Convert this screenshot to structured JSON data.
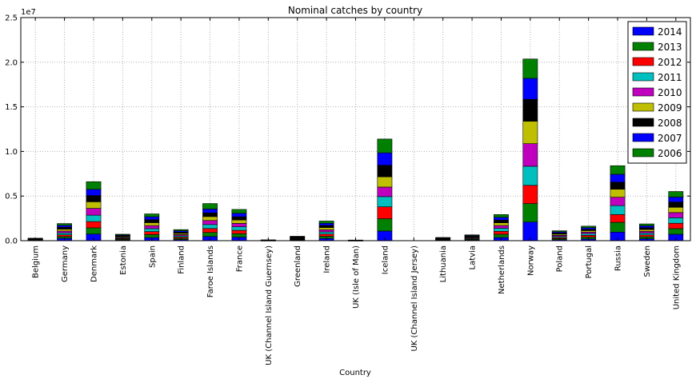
{
  "chart_data": {
    "type": "bar",
    "stacked": true,
    "title": "Nominal catches by country",
    "xlabel": "Country",
    "ylabel": "",
    "y_offset_text": "1e7",
    "ylim": [
      0,
      25000000
    ],
    "yticks": [
      0,
      5000000,
      10000000,
      15000000,
      20000000,
      25000000
    ],
    "ytick_labels": [
      "0.0",
      "0.5",
      "1.0",
      "1.5",
      "2.0",
      "2.5"
    ],
    "grid": true,
    "legend_position": "top-right",
    "categories": [
      "Belgium",
      "Germany",
      "Denmark",
      "Estonia",
      "Spain",
      "Finland",
      "Faroe Islands",
      "France",
      "UK (Channel Island Guernsey)",
      "Greenland",
      "Ireland",
      "UK (Isle of Man)",
      "Iceland",
      "UK (Channel Island Jersey)",
      "Lithuania",
      "Latvia",
      "Netherlands",
      "Norway",
      "Poland",
      "Portugal",
      "Russia",
      "Sweden",
      "United Kingdom"
    ],
    "series": [
      {
        "name": "2014",
        "color": "#0000ff",
        "values": [
          40000,
          260000,
          740000,
          80000,
          350000,
          130000,
          470000,
          400000,
          10000,
          55000,
          250000,
          8000,
          1080000,
          0,
          45000,
          75000,
          360000,
          2090000,
          110000,
          190000,
          960000,
          220000,
          720000
        ]
      },
      {
        "name": "2013",
        "color": "#008000",
        "values": [
          30000,
          200000,
          700000,
          80000,
          340000,
          130000,
          450000,
          380000,
          10000,
          55000,
          240000,
          8000,
          1380000,
          0,
          40000,
          75000,
          360000,
          2070000,
          120000,
          210000,
          1100000,
          220000,
          630000
        ]
      },
      {
        "name": "2012",
        "color": "#ff0000",
        "values": [
          30000,
          200000,
          700000,
          80000,
          330000,
          140000,
          440000,
          380000,
          10000,
          55000,
          250000,
          8000,
          1330000,
          0,
          35000,
          75000,
          330000,
          2040000,
          120000,
          200000,
          870000,
          210000,
          600000
        ]
      },
      {
        "name": "2011",
        "color": "#00bfbf",
        "values": [
          30000,
          210000,
          720000,
          80000,
          330000,
          140000,
          450000,
          390000,
          10000,
          55000,
          240000,
          8000,
          1150000,
          0,
          40000,
          75000,
          340000,
          2140000,
          120000,
          190000,
          1000000,
          200000,
          620000
        ]
      },
      {
        "name": "2010",
        "color": "#bf00bf",
        "values": [
          30000,
          210000,
          760000,
          80000,
          340000,
          140000,
          450000,
          390000,
          10000,
          55000,
          240000,
          8000,
          1070000,
          0,
          40000,
          75000,
          310000,
          2530000,
          130000,
          170000,
          940000,
          200000,
          580000
        ]
      },
      {
        "name": "2009",
        "color": "#bfbf00",
        "values": [
          30000,
          210000,
          740000,
          80000,
          330000,
          140000,
          440000,
          380000,
          10000,
          55000,
          240000,
          8000,
          1150000,
          0,
          40000,
          70000,
          300000,
          2520000,
          130000,
          170000,
          900000,
          200000,
          590000
        ]
      },
      {
        "name": "2008",
        "color": "#000000",
        "values": [
          30000,
          220000,
          700000,
          80000,
          340000,
          140000,
          410000,
          360000,
          10000,
          55000,
          250000,
          8000,
          1290000,
          0,
          40000,
          70000,
          310000,
          2450000,
          130000,
          160000,
          790000,
          210000,
          590000
        ]
      },
      {
        "name": "2007",
        "color": "#0000ff",
        "values": [
          30000,
          210000,
          690000,
          80000,
          320000,
          140000,
          440000,
          390000,
          10000,
          55000,
          240000,
          8000,
          1390000,
          0,
          40000,
          70000,
          310000,
          2350000,
          130000,
          170000,
          880000,
          210000,
          560000
        ]
      },
      {
        "name": "2006",
        "color": "#008000",
        "values": [
          30000,
          200000,
          860000,
          80000,
          320000,
          140000,
          610000,
          430000,
          10000,
          55000,
          250000,
          8000,
          1550000,
          0,
          40000,
          70000,
          310000,
          2170000,
          120000,
          170000,
          960000,
          210000,
          620000
        ]
      }
    ]
  }
}
